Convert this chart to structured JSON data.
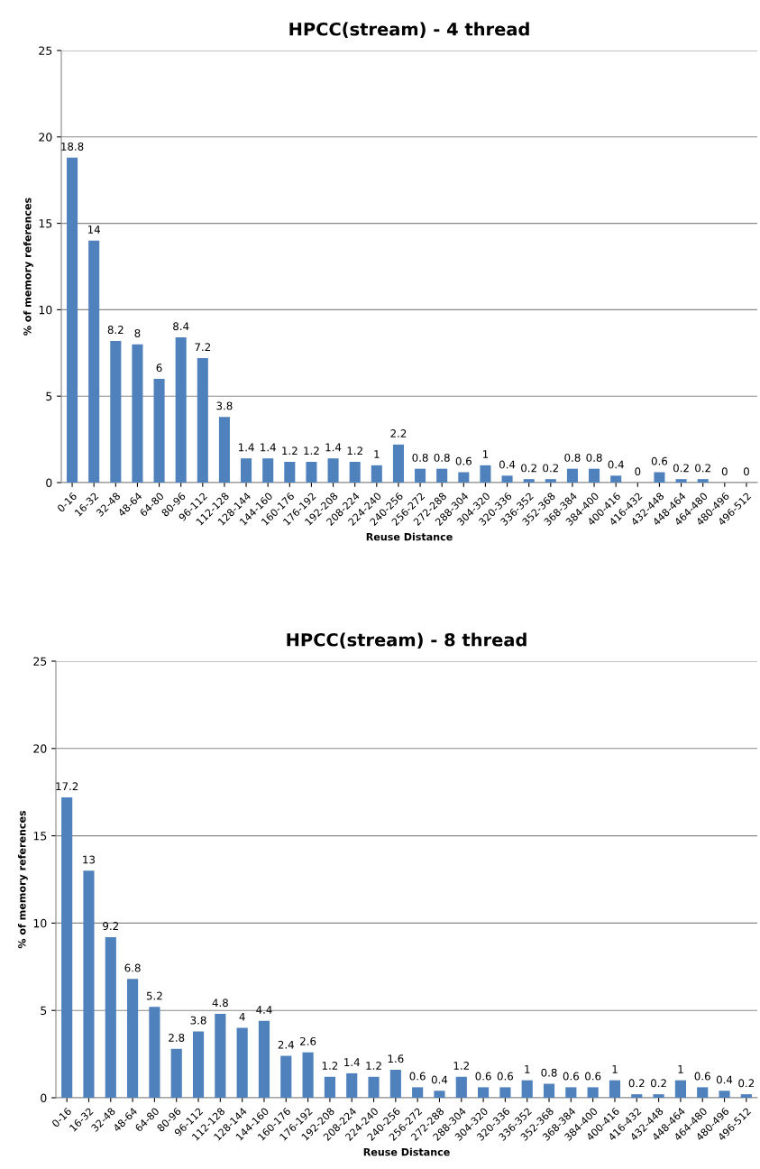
{
  "chart_data": [
    {
      "type": "bar",
      "title": "HPCC(stream) - 4 thread",
      "xlabel": "Reuse Distance",
      "ylabel": "% of memory references",
      "categories": [
        "0-16",
        "16-32",
        "32-48",
        "48-64",
        "64-80",
        "80-96",
        "96-112",
        "112-128",
        "128-144",
        "144-160",
        "160-176",
        "176-192",
        "192-208",
        "208-224",
        "224-240",
        "240-256",
        "256-272",
        "272-288",
        "288-304",
        "304-320",
        "320-336",
        "336-352",
        "352-368",
        "368-384",
        "384-400",
        "400-416",
        "416-432",
        "432-448",
        "448-464",
        "464-480",
        "480-496",
        "496-512"
      ],
      "values": [
        18.8,
        14,
        8.2,
        8,
        6,
        8.4,
        7.2,
        3.8,
        1.4,
        1.4,
        1.2,
        1.2,
        1.4,
        1.2,
        1,
        2.2,
        0.8,
        0.8,
        0.6,
        1,
        0.4,
        0.2,
        0.2,
        0.8,
        0.8,
        0.4,
        0,
        0.6,
        0.2,
        0.2,
        0,
        0
      ],
      "color": "#4f81bd",
      "ylim": [
        0,
        25
      ],
      "yticks": [
        0,
        5,
        10,
        15,
        20,
        25
      ],
      "grid": "y",
      "data_labels": true
    },
    {
      "type": "bar",
      "title": "HPCC(stream) - 8 thread",
      "xlabel": "Reuse Distance",
      "ylabel": "% of memory references",
      "categories": [
        "0-16",
        "16-32",
        "32-48",
        "48-64",
        "64-80",
        "80-96",
        "96-112",
        "112-128",
        "128-144",
        "144-160",
        "160-176",
        "176-192",
        "192-208",
        "208-224",
        "224-240",
        "240-256",
        "256-272",
        "272-288",
        "288-304",
        "304-320",
        "320-336",
        "336-352",
        "352-368",
        "368-384",
        "384-400",
        "400-416",
        "416-432",
        "432-448",
        "448-464",
        "464-480",
        "480-496",
        "496-512"
      ],
      "values": [
        17.2,
        13,
        9.2,
        6.8,
        5.2,
        2.8,
        3.8,
        4.8,
        4,
        4.4,
        2.4,
        2.6,
        1.2,
        1.4,
        1.2,
        1.6,
        0.6,
        0.4,
        1.2,
        0.6,
        0.6,
        1,
        0.8,
        0.6,
        0.6,
        1,
        0.2,
        0.2,
        1,
        0.6,
        0.4,
        0.2
      ],
      "color": "#4f81bd",
      "ylim": [
        0,
        25
      ],
      "yticks": [
        0,
        5,
        10,
        15,
        20,
        25
      ],
      "grid": "y",
      "data_labels": true
    }
  ]
}
